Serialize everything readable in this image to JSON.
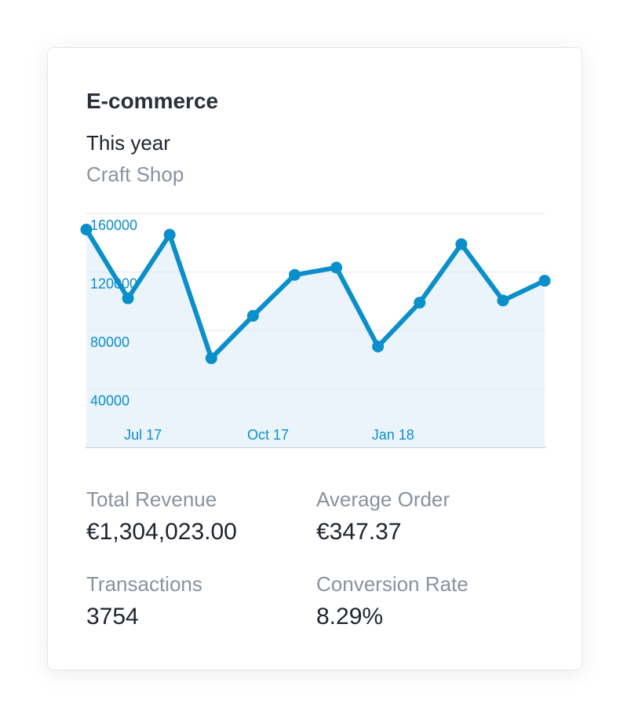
{
  "card": {
    "title": "E-commerce",
    "period": "This year",
    "source": "Craft Shop"
  },
  "chart_data": {
    "type": "line",
    "categories": [
      null,
      null,
      "Jul 17",
      null,
      null,
      "Oct 17",
      null,
      null,
      "Jan 18",
      null,
      null,
      null
    ],
    "values": [
      149000,
      102000,
      145500,
      61000,
      90000,
      118000,
      123000,
      69000,
      99000,
      139000,
      100500,
      114000
    ],
    "color": "#0a8fcb",
    "area_color": "#ebf4fb",
    "ylim": [
      0,
      160000
    ],
    "yticks": [
      40000,
      80000,
      120000,
      160000
    ],
    "grid": true
  },
  "stats": [
    {
      "label": "Total Revenue",
      "value": "€1,304,023.00"
    },
    {
      "label": "Average Order",
      "value": "€347.37"
    },
    {
      "label": "Transactions",
      "value": "3754"
    },
    {
      "label": "Conversion Rate",
      "value": "8.29%"
    }
  ]
}
